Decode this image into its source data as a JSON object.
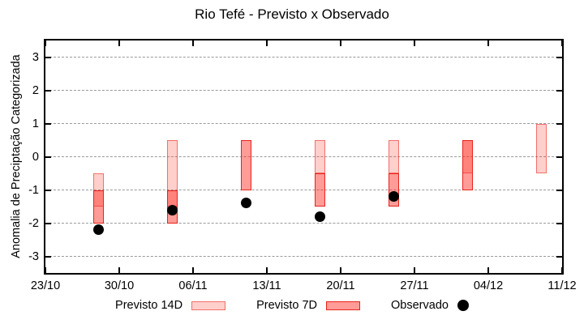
{
  "chart_data": {
    "type": "bar",
    "title": "Rio Tefé - Previsto x Observado",
    "xlabel": "",
    "ylabel": "Anomalia de Preciptação Categorizada",
    "ylim": [
      -3.5,
      3.5
    ],
    "x_total_days": 49,
    "grid": "horizontal-dotted",
    "legend_position": "bottom",
    "yticks": [
      {
        "value": 3,
        "label": "3"
      },
      {
        "value": 2,
        "label": "2"
      },
      {
        "value": 1,
        "label": "1"
      },
      {
        "value": 0,
        "label": "0"
      },
      {
        "value": -1,
        "label": "-1"
      },
      {
        "value": -2,
        "label": "-2"
      },
      {
        "value": -3,
        "label": "-3"
      }
    ],
    "xticks": [
      {
        "day": 0,
        "label": "23/10"
      },
      {
        "day": 7,
        "label": "30/10"
      },
      {
        "day": 14,
        "label": "06/11"
      },
      {
        "day": 21,
        "label": "13/11"
      },
      {
        "day": 28,
        "label": "20/11"
      },
      {
        "day": 35,
        "label": "27/11"
      },
      {
        "day": 42,
        "label": "04/12"
      },
      {
        "day": 49,
        "label": "11/12"
      }
    ],
    "series": [
      {
        "name": "Previsto 14D",
        "type": "range_bar",
        "style": "light",
        "points": [
          {
            "day": 5,
            "low": -1.5,
            "high": -0.5
          },
          {
            "day": 12,
            "low": -1.5,
            "high": 0.5
          },
          {
            "day": 26,
            "low": -0.5,
            "high": 0.5
          },
          {
            "day": 33,
            "low": -0.5,
            "high": 0.5
          },
          {
            "day": 40,
            "low": -0.5,
            "high": 0.5
          },
          {
            "day": 47,
            "low": -0.5,
            "high": 1.0
          }
        ]
      },
      {
        "name": "Previsto 7D",
        "type": "range_bar",
        "style": "dark",
        "points": [
          {
            "day": 5,
            "low": -2.0,
            "high": -1.0
          },
          {
            "day": 12,
            "low": -2.0,
            "high": -1.0
          },
          {
            "day": 19,
            "low": -1.0,
            "high": 0.5
          },
          {
            "day": 26,
            "low": -1.5,
            "high": -0.5
          },
          {
            "day": 33,
            "low": -1.5,
            "high": -0.5
          },
          {
            "day": 40,
            "low": -1.0,
            "high": 0.5
          }
        ]
      },
      {
        "name": "Observado",
        "type": "scatter",
        "points": [
          {
            "day": 5,
            "value": -2.2
          },
          {
            "day": 12,
            "value": -1.6
          },
          {
            "day": 19,
            "value": -1.4
          },
          {
            "day": 26,
            "value": -1.8
          },
          {
            "day": 33,
            "value": -1.2
          }
        ]
      }
    ]
  },
  "colors": {
    "previsto_14d_fill": "rgba(255,35,25,0.22)",
    "previsto_14d_border": "rgba(232,35,28,0.55)",
    "previsto_7d_fill": "rgba(255,35,25,0.45)",
    "previsto_7d_border": "#e8231c",
    "observado": "#000000",
    "grid": "#9a9a9a",
    "axis": "#000000"
  }
}
